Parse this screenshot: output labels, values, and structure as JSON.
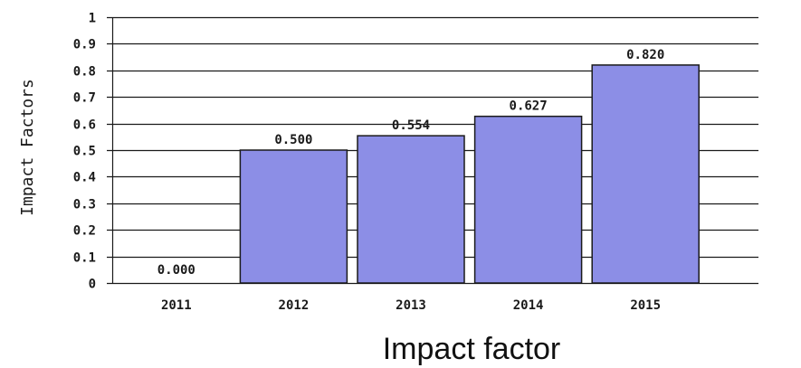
{
  "chart_data": {
    "type": "bar",
    "categories": [
      "2011",
      "2012",
      "2013",
      "2014",
      "2015"
    ],
    "values": [
      0.0,
      0.5,
      0.554,
      0.627,
      0.82
    ],
    "data_labels": [
      "0.000",
      "0.500",
      "0.554",
      "0.627",
      "0.820"
    ],
    "title": "Impact factor",
    "xlabel": "",
    "ylabel": "Impact Factors",
    "ylim": [
      0,
      1
    ],
    "yticks": [
      0,
      0.1,
      0.2,
      0.3,
      0.4,
      0.5,
      0.6,
      0.7,
      0.8,
      0.9,
      1
    ],
    "ytick_labels": [
      "0",
      "0.1",
      "0.2",
      "0.3",
      "0.4",
      "0.5",
      "0.6",
      "0.7",
      "0.8",
      "0.9",
      "1"
    ],
    "grid": true,
    "legend": "none",
    "colors": {
      "bar_fill": "#8c8ee6",
      "bar_stroke": "#1a1a1a",
      "grid": "#1a1a1a",
      "text": "#1a1a1a"
    }
  }
}
